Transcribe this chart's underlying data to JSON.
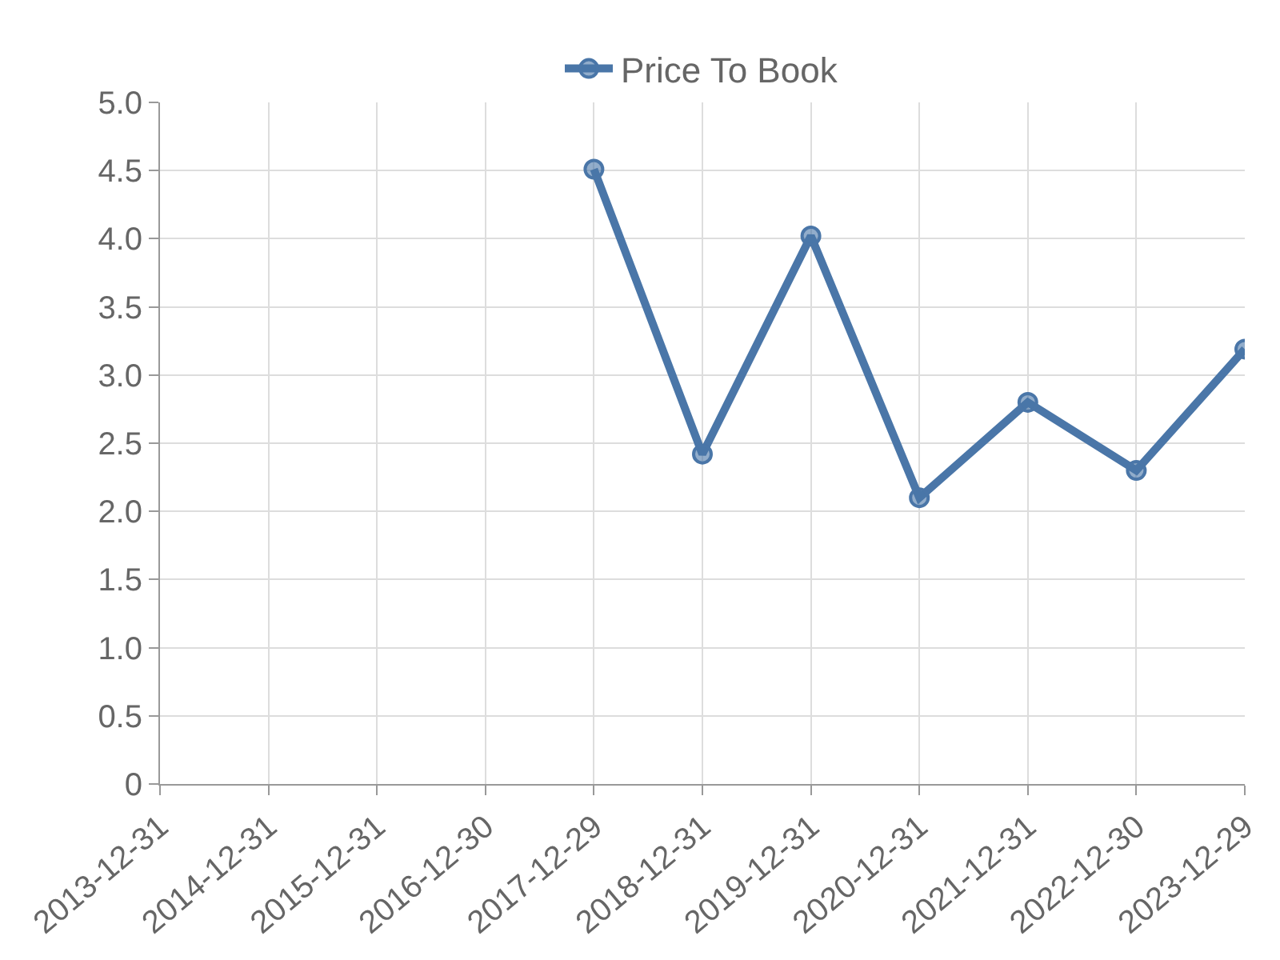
{
  "chart_data": {
    "type": "line",
    "categories": [
      "2013-12-31",
      "2014-12-31",
      "2015-12-31",
      "2016-12-30",
      "2017-12-29",
      "2018-12-31",
      "2019-12-31",
      "2020-12-31",
      "2021-12-31",
      "2022-12-30",
      "2023-12-29"
    ],
    "series": [
      {
        "name": "Price To Book",
        "color": "#4a76a8",
        "values": [
          null,
          null,
          null,
          null,
          4.51,
          2.42,
          4.02,
          2.1,
          2.8,
          2.3,
          3.19
        ]
      }
    ],
    "ylim": [
      0,
      5
    ],
    "yticks": [
      0,
      0.5,
      {
        "value": 1,
        "label": "1.0"
      },
      1.5,
      {
        "value": 2,
        "label": "2.0"
      },
      2.5,
      {
        "value": 3,
        "label": "3.0"
      },
      3.5,
      {
        "value": 4,
        "label": "4.0"
      },
      4.5,
      {
        "value": 5,
        "label": "5.0"
      }
    ],
    "grid": true,
    "legend": "top",
    "marker": "circle",
    "line_style": "solid"
  }
}
